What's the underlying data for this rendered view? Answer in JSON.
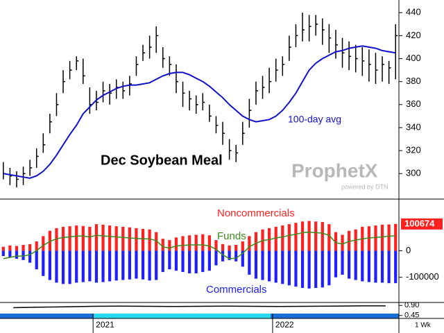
{
  "chart_data": [
    {
      "type": "ohlc",
      "title": "Dec Soybean Meal",
      "period": "1 Wk",
      "watermark": {
        "brand": "ProphetX",
        "credit": "powered by DTN"
      },
      "categories": [
        null,
        null,
        null,
        null,
        null,
        null,
        null,
        null,
        null,
        null,
        null,
        null,
        null,
        null,
        "2021",
        null,
        null,
        null,
        null,
        null,
        null,
        null,
        null,
        null,
        null,
        null,
        null,
        null,
        null,
        null,
        null,
        null,
        null,
        null,
        null,
        null,
        null,
        null,
        null,
        null,
        null,
        "2022",
        null,
        null,
        null,
        null,
        null,
        null,
        null,
        null,
        null,
        null,
        null,
        null,
        null,
        null,
        null,
        null,
        null,
        null
      ],
      "color": "#000000",
      "high": [
        310,
        305,
        302,
        306,
        312,
        322,
        335,
        352,
        370,
        390,
        398,
        402,
        400,
        375,
        372,
        380,
        378,
        382,
        380,
        385,
        402,
        412,
        420,
        428,
        410,
        402,
        395,
        380,
        372,
        368,
        370,
        360,
        350,
        345,
        330,
        325,
        345,
        365,
        380,
        385,
        392,
        400,
        402,
        420,
        430,
        440,
        438,
        438,
        435,
        430,
        425,
        418,
        415,
        412,
        410,
        408,
        405,
        402,
        398,
        430
      ],
      "low": [
        295,
        290,
        288,
        290,
        298,
        305,
        318,
        335,
        350,
        370,
        382,
        390,
        378,
        352,
        355,
        362,
        360,
        365,
        365,
        368,
        385,
        398,
        400,
        405,
        392,
        385,
        370,
        358,
        355,
        352,
        355,
        345,
        335,
        325,
        312,
        310,
        325,
        340,
        360,
        365,
        370,
        380,
        385,
        398,
        410,
        415,
        415,
        420,
        412,
        405,
        400,
        392,
        390,
        388,
        385,
        380,
        378,
        380,
        378,
        382
      ],
      "close": [
        300,
        298,
        295,
        300,
        305,
        315,
        325,
        345,
        360,
        380,
        390,
        398,
        385,
        360,
        362,
        372,
        370,
        375,
        372,
        378,
        395,
        405,
        410,
        420,
        400,
        395,
        380,
        370,
        365,
        360,
        362,
        350,
        342,
        335,
        320,
        318,
        335,
        355,
        372,
        375,
        380,
        390,
        395,
        410,
        420,
        425,
        428,
        430,
        425,
        418,
        412,
        405,
        402,
        400,
        398,
        395,
        390,
        395,
        392,
        420
      ],
      "ma": {
        "name": "100-day avg",
        "color": "#1010cc",
        "values": [
          300,
          299,
          298,
          297,
          296,
          298,
          302,
          308,
          316,
          325,
          334,
          342,
          352,
          358,
          364,
          368,
          371,
          374,
          376,
          377,
          377,
          378,
          379,
          382,
          385,
          387,
          388,
          388,
          386,
          383,
          380,
          376,
          371,
          366,
          360,
          355,
          350,
          347,
          345,
          346,
          347,
          350,
          355,
          362,
          370,
          380,
          390,
          396,
          400,
          403,
          406,
          407,
          409,
          410,
          411,
          410,
          409,
          407,
          406,
          405
        ]
      },
      "ylim": [
        279,
        451
      ],
      "yticks": [
        300,
        320,
        340,
        360,
        380,
        400,
        420,
        440
      ]
    },
    {
      "type": "bar",
      "series": [
        {
          "name": "Noncommercials",
          "color": "#ff2020",
          "values": [
            15000,
            20000,
            18000,
            22000,
            25000,
            35000,
            55000,
            75000,
            85000,
            90000,
            92000,
            95000,
            93000,
            90000,
            100000,
            98000,
            95000,
            92000,
            90000,
            88000,
            85000,
            82000,
            80000,
            70000,
            45000,
            40000,
            50000,
            55000,
            58000,
            60000,
            62000,
            58000,
            40000,
            25000,
            20000,
            22000,
            35000,
            55000,
            70000,
            80000,
            85000,
            90000,
            95000,
            100000,
            105000,
            110000,
            112000,
            110000,
            108000,
            100000,
            70000,
            60000,
            75000,
            80000,
            90000,
            92000,
            95000,
            98000,
            99000,
            100674
          ]
        },
        {
          "name": "Commercials",
          "color": "#2020ff",
          "values": [
            -20000,
            -25000,
            -30000,
            -35000,
            -45000,
            -70000,
            -95000,
            -110000,
            -120000,
            -125000,
            -125000,
            -120000,
            -118000,
            -115000,
            -120000,
            -118000,
            -115000,
            -112000,
            -110000,
            -108000,
            -105000,
            -108000,
            -112000,
            -110000,
            -80000,
            -70000,
            -75000,
            -80000,
            -85000,
            -85000,
            -80000,
            -75000,
            -55000,
            -40000,
            -35000,
            -40000,
            -60000,
            -90000,
            -105000,
            -110000,
            -115000,
            -120000,
            -125000,
            -130000,
            -135000,
            -140000,
            -142000,
            -140000,
            -138000,
            -130000,
            -100000,
            -90000,
            -105000,
            -110000,
            -115000,
            -118000,
            -120000,
            -120000,
            -122000,
            -122000
          ]
        },
        {
          "name": "Funds",
          "color": "#3a8a1a",
          "type": "line",
          "values": [
            -30000,
            -25000,
            -20000,
            -20000,
            -15000,
            0,
            20000,
            35000,
            45000,
            50000,
            52000,
            55000,
            55000,
            52000,
            58000,
            56000,
            54000,
            52000,
            50000,
            48000,
            46000,
            45000,
            45000,
            38000,
            15000,
            10000,
            18000,
            20000,
            22000,
            22000,
            22000,
            18000,
            5000,
            -15000,
            -30000,
            -28000,
            -10000,
            15000,
            28000,
            38000,
            42000,
            48000,
            52000,
            58000,
            62000,
            68000,
            70000,
            68000,
            66000,
            58000,
            30000,
            25000,
            35000,
            40000,
            45000,
            48000,
            50000,
            52000,
            55000,
            56000
          ]
        }
      ],
      "ylim": [
        -192000,
        189000
      ],
      "yticks": [
        0,
        -100000
      ]
    },
    {
      "type": "line",
      "color": "#000000",
      "values": [
        0.8,
        0.82,
        0.84,
        0.86,
        0.87,
        0.86,
        0.85,
        0.86,
        0.87,
        0.86,
        0.85,
        0.86,
        0.87,
        0.88,
        0.88
      ],
      "ylim": [
        0.35,
        1.0
      ],
      "yticks": [
        {
          "value": 0.9,
          "label": "0.90"
        },
        {
          "value": 0.45,
          "label": "0.45"
        }
      ]
    }
  ]
}
